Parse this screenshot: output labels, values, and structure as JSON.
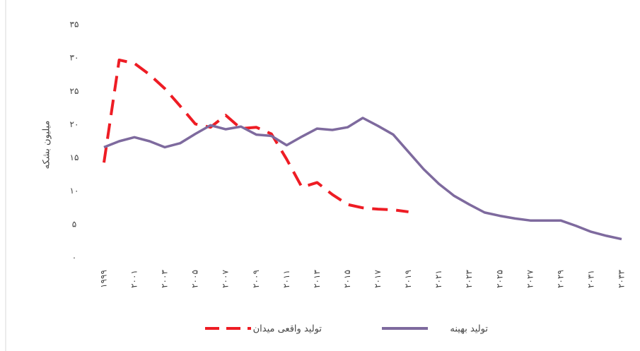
{
  "chart_data": {
    "type": "line",
    "y_label": "میلیون بشکه",
    "categories": [
      "۱۹۹۹",
      null,
      "۲۰۰۱",
      null,
      "۲۰۰۳",
      null,
      "۲۰۰۵",
      null,
      "۲۰۰۷",
      null,
      "۲۰۰۹",
      null,
      "۲۰۱۱",
      null,
      "۲۰۱۳",
      null,
      "۲۰۱۵",
      null,
      "۲۰۱۷",
      null,
      "۲۰۱۹",
      null,
      "۲۰۲۱",
      null,
      "۲۰۲۳",
      null,
      "۲۰۲۵",
      null,
      "۲۰۲۷",
      null,
      "۲۰۲۹",
      null,
      "۲۰۳۱",
      null,
      "۲۰۳۳"
    ],
    "series": [
      {
        "name": "تولید واقعی میدان",
        "color": "#ee1c24",
        "dashed": true,
        "values": [
          14.3,
          29.7,
          29.2,
          27.5,
          25.4,
          22.8,
          20.1,
          19.6,
          21.4,
          19.4,
          19.6,
          18.6,
          14.8,
          10.6,
          11.3,
          9.5,
          8,
          7.5,
          7.3,
          7.2,
          6.9,
          null,
          null,
          null,
          null,
          null,
          null,
          null,
          null,
          null,
          null,
          null,
          null,
          null,
          null
        ]
      },
      {
        "name": "تولید بهینه",
        "color": "#7e6a9e",
        "dashed": false,
        "values": [
          16.6,
          17.5,
          18.1,
          17.5,
          16.6,
          17.2,
          18.6,
          19.9,
          19.3,
          19.7,
          18.5,
          18.3,
          16.9,
          18.2,
          19.4,
          19.2,
          19.6,
          21,
          19.8,
          18.5,
          15.9,
          13.3,
          11.1,
          9.3,
          8,
          6.8,
          6.3,
          5.9,
          5.6,
          5.6,
          5.6,
          4.8,
          3.9,
          3.3,
          2.8
        ]
      }
    ],
    "ylim": [
      0,
      35
    ],
    "yticks": [
      {
        "value": 0,
        "label": "۰"
      },
      {
        "value": 5,
        "label": "۵"
      },
      {
        "value": 10,
        "label": "۱۰"
      },
      {
        "value": 15,
        "label": "۱۵"
      },
      {
        "value": 20,
        "label": "۲۰"
      },
      {
        "value": 25,
        "label": "۲۵"
      },
      {
        "value": 30,
        "label": "۳۰"
      },
      {
        "value": 35,
        "label": "۳۵"
      }
    ],
    "grid": false
  }
}
